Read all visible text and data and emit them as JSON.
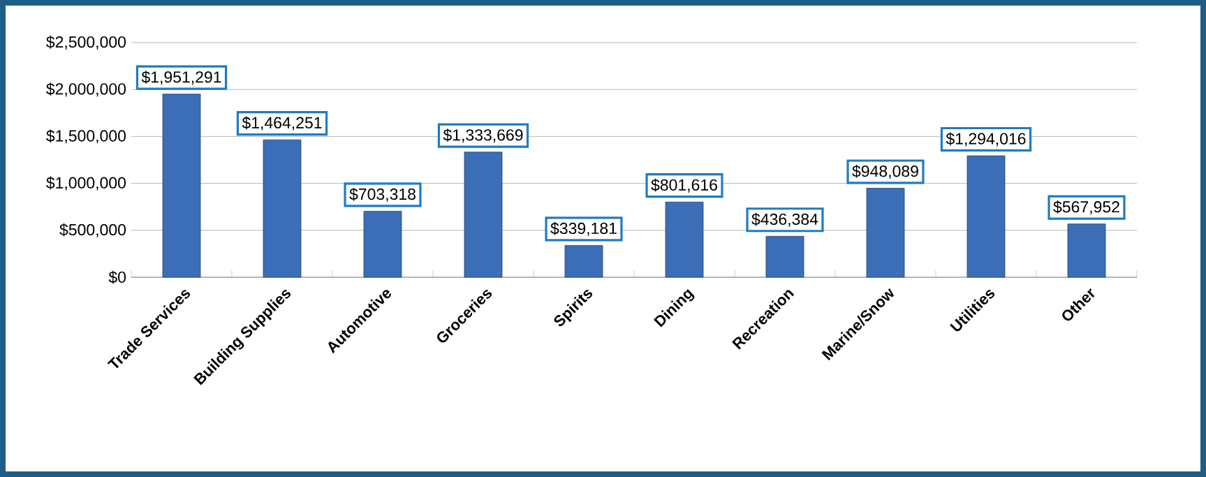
{
  "chart_data": {
    "type": "bar",
    "categories": [
      "Trade Services",
      "Building Supplies",
      "Automotive",
      "Groceries",
      "Spirits",
      "Dining",
      "Recreation",
      "Marine/Snow",
      "Utilities",
      "Other"
    ],
    "values": [
      1951291,
      1464251,
      703318,
      1333669,
      339181,
      801616,
      436384,
      948089,
      1294016,
      567952
    ],
    "value_labels": [
      "$1,951,291",
      "$1,464,251",
      "$703,318",
      "$1,333,669",
      "$339,181",
      "$801,616",
      "$436,384",
      "$948,089",
      "$1,294,016",
      "$567,952"
    ],
    "color": "#3b6eb6",
    "ylim": [
      0,
      2500000
    ],
    "yticks": [
      {
        "value": 0,
        "label": "$0"
      },
      {
        "value": 500000,
        "label": "$500,000"
      },
      {
        "value": 1000000,
        "label": "$1,000,000"
      },
      {
        "value": 1500000,
        "label": "$1,500,000"
      },
      {
        "value": 2000000,
        "label": "$2,000,000"
      },
      {
        "value": 2500000,
        "label": "$2,500,000"
      }
    ],
    "grid": "y"
  }
}
